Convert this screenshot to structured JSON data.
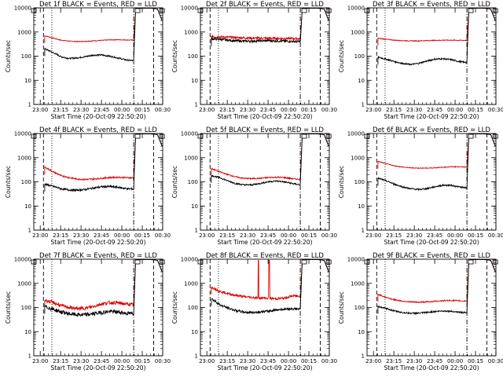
{
  "chart_data": {
    "type": "line",
    "layout": "3x3 grid",
    "yscale": "log",
    "ylim": [
      1,
      10000
    ],
    "ylabel": "Counts/sec",
    "xlabel": "Start Time (20-Oct-09 22:50:20)",
    "x_tick_labels": [
      "23:00",
      "23:15",
      "23:30",
      "23:45",
      "00:00",
      "00:15",
      "00:30"
    ],
    "y_tick_labels": [
      "1",
      "10",
      "100",
      "1000",
      "10000"
    ],
    "legend": "BLACK = Events, RED = LLD",
    "colors": {
      "events": "#000000",
      "lld": "#e00000"
    },
    "panels": [
      {
        "title": "Det 1f BLACK = Events, RED = LLD",
        "events_level": [
          200,
          140,
          95,
          80,
          85,
          95,
          110,
          112,
          100,
          85,
          70,
          65
        ],
        "lld_level": [
          700,
          560,
          460,
          420,
          400,
          410,
          430,
          450,
          470,
          480,
          470,
          460
        ],
        "events_noise": 0.03,
        "lld_noise": 0.015,
        "spikes": []
      },
      {
        "title": "Det 2f BLACK = Events, RED = LLD",
        "events_level": [
          520,
          500,
          460,
          430,
          420,
          420,
          430,
          440,
          430,
          420,
          410,
          400
        ],
        "lld_level": [
          650,
          630,
          610,
          590,
          570,
          560,
          555,
          550,
          545,
          540,
          535,
          530
        ],
        "events_noise": 0.05,
        "lld_noise": 0.05,
        "spikes": []
      },
      {
        "title": "Det 3f BLACK = Events, RED = LLD",
        "events_level": [
          90,
          75,
          60,
          50,
          45,
          50,
          62,
          75,
          78,
          72,
          60,
          55
        ],
        "lld_level": [
          550,
          500,
          460,
          440,
          430,
          430,
          440,
          450,
          460,
          460,
          455,
          450
        ],
        "events_noise": 0.03,
        "lld_noise": 0.015,
        "spikes": []
      },
      {
        "title": "Det 4f BLACK = Events, RED = LLD",
        "events_level": [
          80,
          65,
          52,
          46,
          45,
          48,
          55,
          62,
          64,
          60,
          53,
          50
        ],
        "lld_level": [
          400,
          260,
          180,
          150,
          130,
          125,
          130,
          140,
          150,
          155,
          150,
          145
        ],
        "events_noise": 0.04,
        "lld_noise": 0.03,
        "spikes": []
      },
      {
        "title": "Det 5f BLACK = Events, RED = LLD",
        "events_level": [
          180,
          150,
          110,
          85,
          75,
          75,
          85,
          100,
          108,
          100,
          85,
          75
        ],
        "lld_level": [
          350,
          260,
          200,
          160,
          140,
          135,
          140,
          150,
          155,
          150,
          135,
          125
        ],
        "events_noise": 0.03,
        "lld_noise": 0.025,
        "spikes": []
      },
      {
        "title": "Det 6f BLACK = Events, RED = LLD",
        "events_level": [
          140,
          110,
          80,
          62,
          52,
          48,
          52,
          62,
          72,
          72,
          62,
          55
        ],
        "lld_level": [
          700,
          560,
          460,
          410,
          380,
          370,
          370,
          380,
          400,
          420,
          420,
          410
        ],
        "events_noise": 0.03,
        "lld_noise": 0.015,
        "spikes": []
      },
      {
        "title": "Det 7f BLACK = Events, RED = LLD",
        "events_level": [
          110,
          85,
          65,
          55,
          50,
          50,
          55,
          62,
          68,
          65,
          58,
          55
        ],
        "lld_level": [
          200,
          160,
          120,
          100,
          90,
          92,
          110,
          140,
          160,
          155,
          140,
          130
        ],
        "events_noise": 0.08,
        "lld_noise": 0.07,
        "spikes": []
      },
      {
        "title": "Det 8f BLACK = Events, RED = LLD",
        "events_level": [
          230,
          130,
          95,
          75,
          65,
          62,
          65,
          70,
          80,
          85,
          90,
          85
        ],
        "lld_level": [
          700,
          470,
          380,
          320,
          280,
          260,
          250,
          240,
          230,
          240,
          300,
          300
        ],
        "events_noise": 0.05,
        "lld_noise": 0.05,
        "spikes": [
          0.53,
          0.65
        ]
      },
      {
        "title": "Det 9f BLACK = Events, RED = LLD",
        "events_level": [
          110,
          90,
          72,
          62,
          58,
          58,
          62,
          68,
          72,
          70,
          64,
          60
        ],
        "lld_level": [
          350,
          260,
          210,
          185,
          170,
          165,
          170,
          180,
          190,
          195,
          190,
          185
        ],
        "events_noise": 0.03,
        "lld_noise": 0.025,
        "spikes": []
      }
    ]
  }
}
